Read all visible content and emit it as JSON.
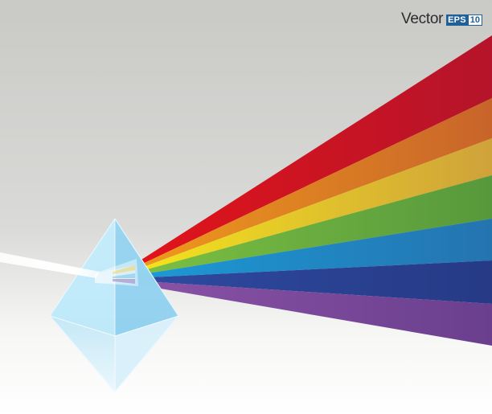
{
  "badge": {
    "word": "Vector",
    "format": "EPS",
    "version": "10"
  },
  "colors": {
    "background_top": "#c8c8c5",
    "background_bottom": "#ffffff",
    "red": "#c8102e",
    "orange": "#e36f1e",
    "yellow": "#e2c72a",
    "green": "#5ea53a",
    "blue": "#1e7fc0",
    "indigo": "#283b8f",
    "violet": "#6c3f90",
    "prism": "#aee0f5",
    "badge_blue": "#1f5f9a"
  },
  "icons": [
    "prism-crystal-icon",
    "rainbow-spectrum-icon",
    "white-light-ray-icon"
  ]
}
